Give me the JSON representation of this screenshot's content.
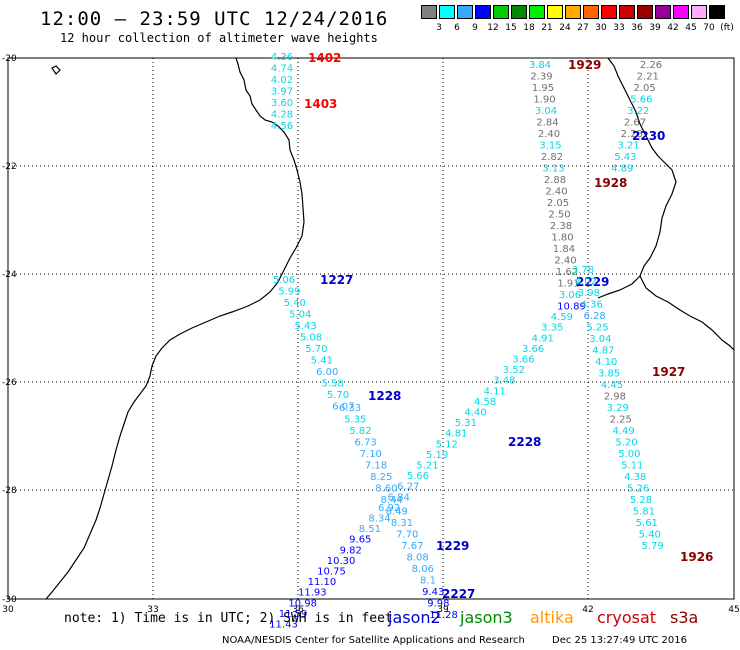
{
  "header": {
    "title": "12:00 — 23:59 UTC 12/24/2016",
    "subtitle": "12 hour collection of altimeter wave heights"
  },
  "colorbar": {
    "unit": "(ft)",
    "colors": [
      "#808080",
      "#00ffff",
      "#33aaff",
      "#0000ff",
      "#00cc00",
      "#008800",
      "#00ee00",
      "#ffff00",
      "#ffaa00",
      "#ff6600",
      "#ff0000",
      "#cc0000",
      "#990000",
      "#990099",
      "#ff00ff",
      "#ffaaff",
      "#000000"
    ],
    "labels": [
      "3",
      "6",
      "9",
      "12",
      "15",
      "18",
      "21",
      "24",
      "27",
      "30",
      "33",
      "36",
      "39",
      "42",
      "45",
      "70"
    ]
  },
  "axes": {
    "x_ticks": [
      "30",
      "33",
      "36",
      "39",
      "42",
      "45"
    ],
    "y_ticks": [
      "-20",
      "-22",
      "-24",
      "-26",
      "-28",
      "-30"
    ]
  },
  "tracks": [
    {
      "id": "1402",
      "color": "#ff0000",
      "values": [
        "4.36",
        "4.74",
        "4.02",
        "3.97",
        "3.60",
        "4.28",
        "4.56"
      ]
    },
    {
      "id": "1403",
      "color": "#ff0000",
      "values": []
    },
    {
      "id": "1227",
      "color": "#0000cc",
      "values": [
        "5.06",
        "5.99",
        "5.40",
        "5.04",
        "5.43",
        "5.08",
        "5.70",
        "5.41",
        "6.00",
        "5.58",
        "5.70",
        "6.07"
      ]
    },
    {
      "id": "1228",
      "color": "#0000cc",
      "values": [
        "6.33",
        "5.35",
        "5.82",
        "6.73",
        "7.10",
        "7.18",
        "8.25",
        "8.60",
        "8.44",
        "8.49",
        "8.31",
        "7.70",
        "7.67",
        "8.08",
        "8.06",
        "8.1",
        "9.43",
        "9.98",
        "11.28"
      ]
    },
    {
      "id": "2227",
      "color": "#0000cc",
      "values": []
    },
    {
      "id": "1929",
      "color": "#880000",
      "values": [
        "3.84",
        "2.39",
        "1.95",
        "1.90",
        "3.04",
        "2.84",
        "2.40",
        "3.15",
        "2.82",
        "3.13",
        "2.88",
        "2.40",
        "2.05",
        "2.50",
        "2.38",
        "1.80",
        "1.84",
        "2.40",
        "1.62",
        "1.91",
        "3.06",
        "10.89",
        "4.59",
        "3.35",
        "4.91",
        "3.66",
        "3.66",
        "3.52",
        "3.48",
        "4.11",
        "4.58",
        "4.40",
        "5.31",
        "4.81",
        "5.12",
        "5.19",
        "5.21",
        "5.66",
        "6.27",
        "6.84",
        "6.92",
        "8.34",
        "8.51",
        "9.65",
        "9.82",
        "10.30",
        "10.75",
        "11.10",
        "11.93",
        "10.98",
        "11.59",
        "11.43"
      ]
    },
    {
      "id": "2229",
      "color": "#0000cc",
      "values": []
    },
    {
      "id": "2228",
      "color": "#0000cc",
      "values": []
    },
    {
      "id": "1229",
      "color": "#0000cc",
      "values": []
    },
    {
      "id": "1928",
      "color": "#880000",
      "values": []
    },
    {
      "id": "2230",
      "color": "#0000cc",
      "values": [
        "2.26",
        "2.21",
        "2.05",
        "5.66",
        "3.22",
        "2.67",
        "2.28",
        "3.21",
        "5.43",
        "4.89"
      ]
    },
    {
      "id": "1927",
      "color": "#880000",
      "values": [
        "3.78",
        "4.02",
        "3.98",
        "4.36",
        "6.28",
        "5.25",
        "3.04",
        "4.87",
        "4.10",
        "3.85",
        "4.45",
        "2.98",
        "3.29",
        "2.25",
        "4.49",
        "5.20",
        "5.00",
        "5.11",
        "4.38",
        "5.26",
        "5.28",
        "5.81",
        "5.61",
        "5.40",
        "5.79"
      ]
    },
    {
      "id": "1926",
      "color": "#880000",
      "values": []
    }
  ],
  "footer": {
    "notes": "note:  1) Time is in UTC;  2) SWH is in feet",
    "satellites": [
      {
        "name": "jason2",
        "color": "#0000cc"
      },
      {
        "name": "jason3",
        "color": "#008800"
      },
      {
        "name": "altika",
        "color": "#ff9900"
      },
      {
        "name": "cryosat",
        "color": "#cc0000"
      },
      {
        "name": "s3a",
        "color": "#880000"
      }
    ],
    "credit": "NOAA/NESDIS Center for Satellite Applications and Research",
    "timestamp": "Dec 25 13:27:49 UTC 2016"
  }
}
